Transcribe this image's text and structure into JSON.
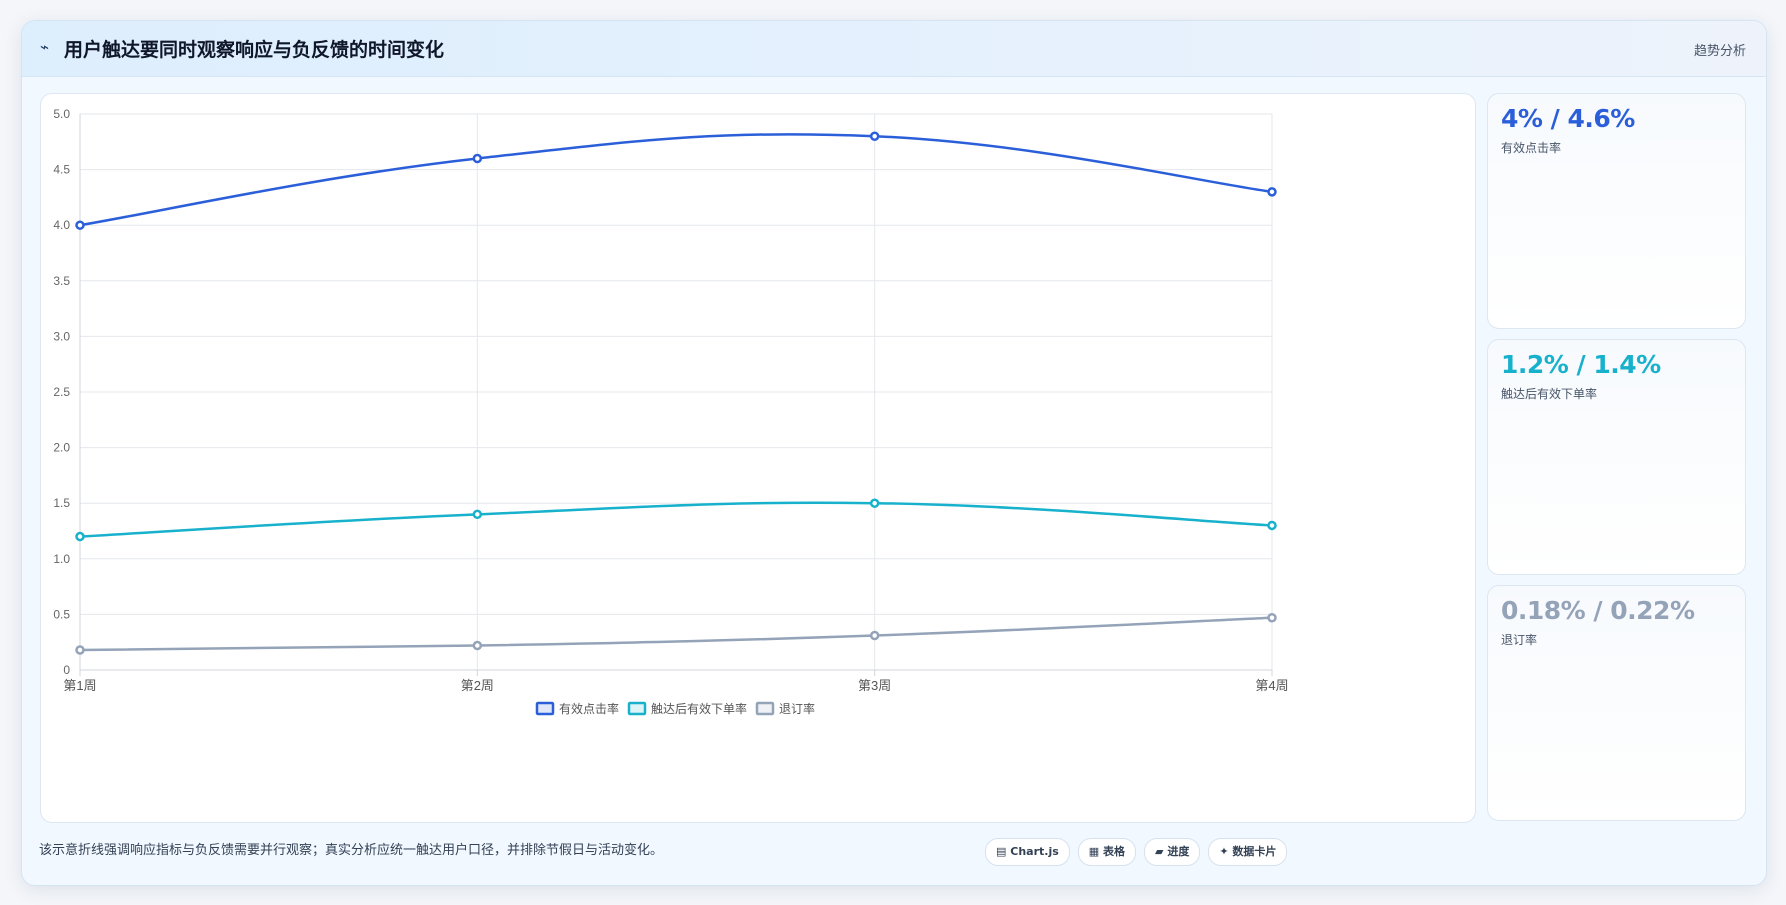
{
  "header": {
    "icon": "trend-line-icon",
    "icon_glyph": "⌁",
    "title": "用户触达要同时观察响应与负反馈的时间变化",
    "tag": "趋势分析"
  },
  "chart_data": {
    "type": "line",
    "categories": [
      "第1周",
      "第2周",
      "第3周",
      "第4周"
    ],
    "ylim": [
      0,
      5
    ],
    "yticks": [
      "0",
      "0.5",
      "1.0",
      "1.5",
      "2.0",
      "2.5",
      "3.0",
      "3.5",
      "4.0",
      "4.5",
      "5.0"
    ],
    "grid": true,
    "legend_position": "bottom",
    "series": [
      {
        "name": "有效点击率",
        "values": [
          4.0,
          4.6,
          4.8,
          4.3
        ],
        "color": "#2b5fd9",
        "smooth": true
      },
      {
        "name": "触达后有效下单率",
        "values": [
          1.2,
          1.4,
          1.5,
          1.3
        ],
        "color": "#17b1cc",
        "smooth": true
      },
      {
        "name": "退订率",
        "values": [
          0.18,
          0.22,
          0.31,
          0.47
        ],
        "color": "#94a3b8",
        "smooth": true
      }
    ]
  },
  "stats": [
    {
      "value": "4% / 4.6%",
      "label": "有效点击率",
      "color": "#2b5fd9"
    },
    {
      "value": "1.2% / 1.4%",
      "label": "触达后有效下单率",
      "color": "#17b1cc"
    },
    {
      "value": "0.18% / 0.22%",
      "label": "退订率",
      "color": "#94a3b8"
    }
  ],
  "footnote": "该示意折线强调响应指标与负反馈需要并行观察；真实分析应统一触达用户口径，并排除节假日与活动变化。",
  "pills": [
    {
      "icon": "chartjs-icon",
      "glyph": "▤",
      "label": "Chart.js"
    },
    {
      "icon": "table-icon",
      "glyph": "▦",
      "label": "表格"
    },
    {
      "icon": "progress-icon",
      "glyph": "▰",
      "label": "进度"
    },
    {
      "icon": "data-card-icon",
      "glyph": "✦",
      "label": "数据卡片"
    }
  ]
}
